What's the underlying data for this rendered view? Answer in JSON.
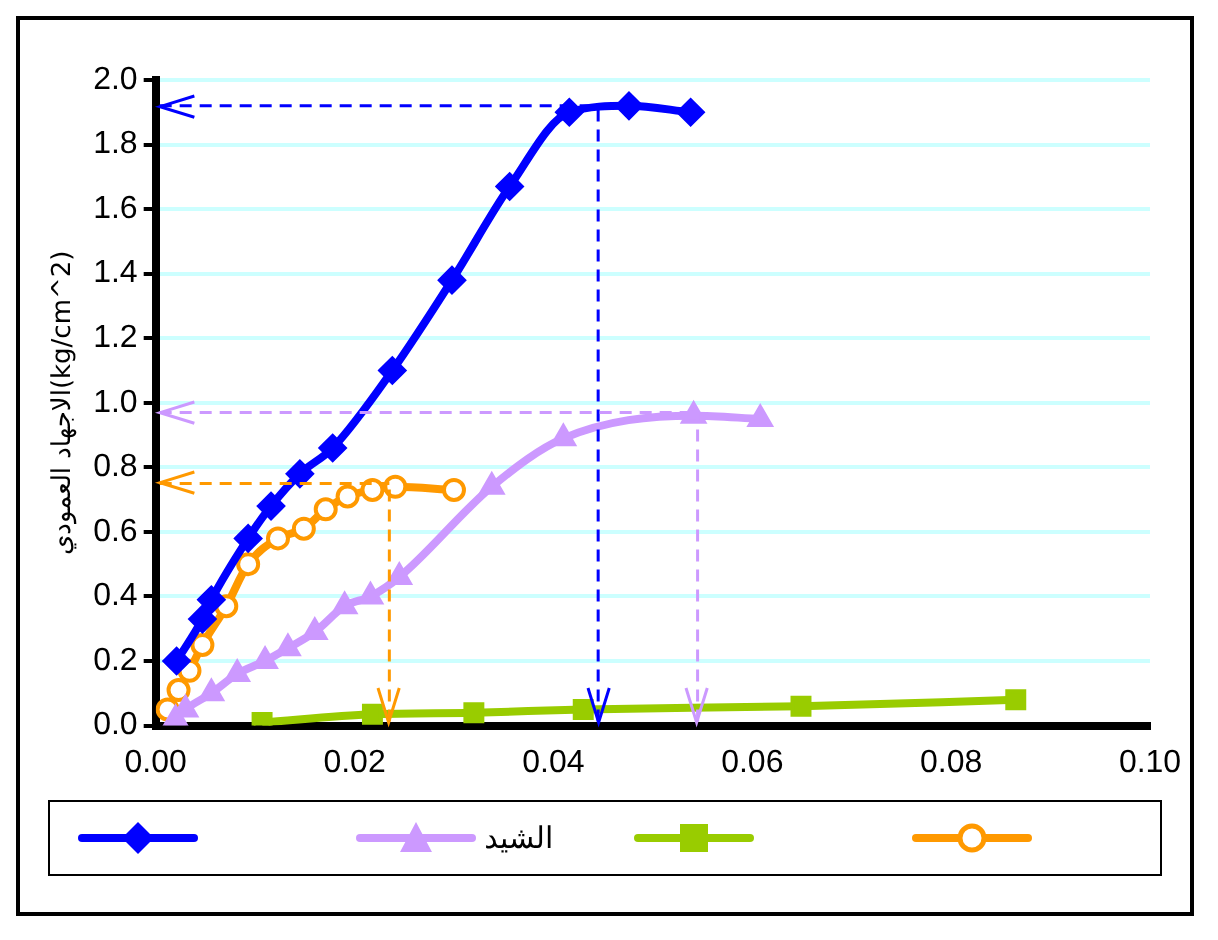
{
  "chart_data": {
    "type": "line",
    "ylabel": "الاجهاد العمودي(kg/cm^2)",
    "xlim": [
      0,
      0.1
    ],
    "xticks": [
      {
        "value": 0,
        "label": "0.00"
      },
      {
        "value": 0.02,
        "label": "0.02"
      },
      {
        "value": 0.04,
        "label": "0.04"
      },
      {
        "value": 0.06,
        "label": "0.06"
      },
      {
        "value": 0.08,
        "label": "0.08"
      },
      {
        "value": 0.1,
        "label": "0.10"
      }
    ],
    "ylim": [
      0,
      2
    ],
    "yticks": [
      {
        "value": 0,
        "label": "0.0"
      },
      {
        "value": 0.2,
        "label": "0.2"
      },
      {
        "value": 0.4,
        "label": "0.4"
      },
      {
        "value": 0.6,
        "label": "0.6"
      },
      {
        "value": 0.8,
        "label": "0.8"
      },
      {
        "value": 1,
        "label": "1.0"
      },
      {
        "value": 1.2,
        "label": "1.2"
      },
      {
        "value": 1.4,
        "label": "1.4"
      },
      {
        "value": 1.6,
        "label": "1.6"
      },
      {
        "value": 1.8,
        "label": "1.8"
      },
      {
        "value": 2,
        "label": "2.0"
      }
    ],
    "grid": "y",
    "legend": "bottom",
    "ref_lines": [
      {
        "axis": "y",
        "value": 1.92,
        "color": "#0000ff",
        "line_style": "dashed"
      },
      {
        "axis": "x",
        "value": 0.0445,
        "color": "#0000ff",
        "line_style": "dashed"
      },
      {
        "axis": "y",
        "value": 0.97,
        "color": "#cc99ff",
        "line_style": "dashed"
      },
      {
        "axis": "x",
        "value": 0.0545,
        "color": "#cc99ff",
        "line_style": "dashed"
      },
      {
        "axis": "y",
        "value": 0.75,
        "color": "#ff9900",
        "line_style": "dashed"
      },
      {
        "axis": "x",
        "value": 0.0235,
        "color": "#ff9900",
        "line_style": "dashed"
      }
    ],
    "series": [
      {
        "color": "#0000ff",
        "marker": "diamond",
        "x": [
          0.0021,
          0.0047,
          0.0056,
          0.0093,
          0.0116,
          0.0145,
          0.0178,
          0.0238,
          0.0298,
          0.0356,
          0.0416,
          0.0476,
          0.0538
        ],
        "values": [
          0.2,
          0.33,
          0.39,
          0.58,
          0.68,
          0.78,
          0.86,
          1.1,
          1.38,
          1.67,
          1.9,
          1.92,
          1.9
        ]
      },
      {
        "name": "الشيد",
        "color": "#cc99ff",
        "marker": "triangle",
        "x": [
          0.002,
          0.003,
          0.0056,
          0.0082,
          0.011,
          0.0133,
          0.016,
          0.019,
          0.0216,
          0.0245,
          0.0338,
          0.041,
          0.0541,
          0.0608
        ],
        "values": [
          0.02,
          0.05,
          0.1,
          0.16,
          0.2,
          0.24,
          0.29,
          0.37,
          0.4,
          0.46,
          0.74,
          0.89,
          0.96,
          0.95
        ]
      },
      {
        "color": "#99cc00",
        "marker": "square",
        "x": [
          0.0107,
          0.0218,
          0.032,
          0.043,
          0.0649,
          0.0865
        ],
        "values": [
          0.01,
          0.035,
          0.04,
          0.05,
          0.06,
          0.08
        ]
      },
      {
        "color": "#ff9900",
        "marker": "circle",
        "x": [
          0.0012,
          0.0023,
          0.0034,
          0.0047,
          0.0071,
          0.0093,
          0.0123,
          0.0149,
          0.0171,
          0.0193,
          0.0218,
          0.0241,
          0.03
        ],
        "values": [
          0.05,
          0.11,
          0.17,
          0.25,
          0.37,
          0.5,
          0.58,
          0.61,
          0.67,
          0.71,
          0.73,
          0.74,
          0.73
        ]
      }
    ]
  }
}
